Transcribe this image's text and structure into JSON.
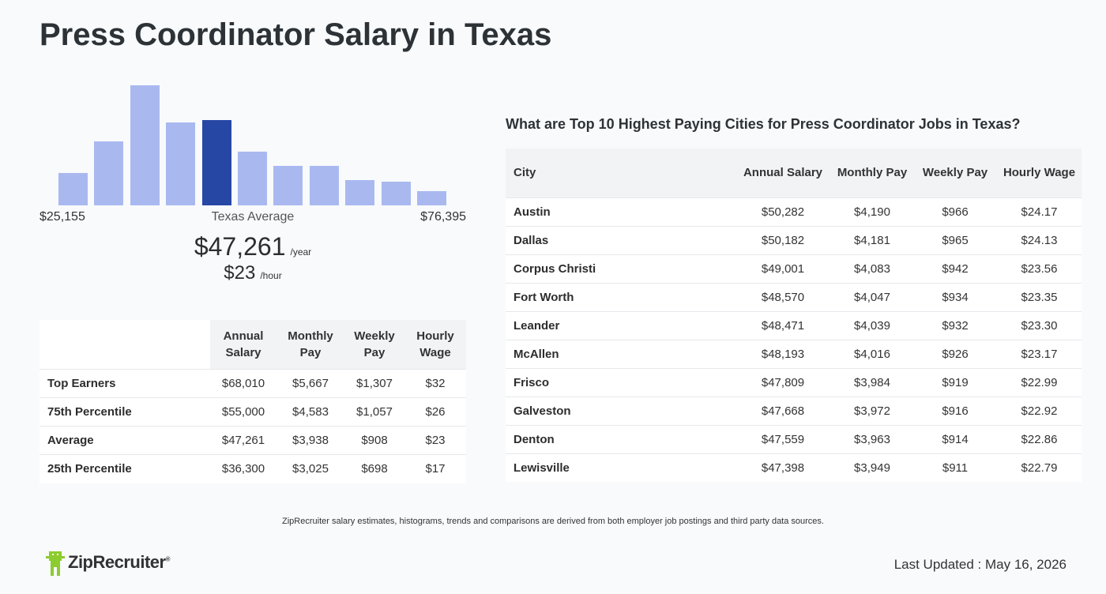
{
  "page": {
    "title": "Press Coordinator Salary in Texas"
  },
  "histogram": {
    "min_label": "$25,155",
    "center_label": "Texas Average",
    "max_label": "$76,395",
    "bar_levels": [
      0.27,
      0.53,
      1.0,
      0.69,
      0.71,
      0.45,
      0.33,
      0.33,
      0.21,
      0.2,
      0.12
    ],
    "highlight_index": 4,
    "colors": {
      "bar": "#a9b9f0",
      "highlight": "#2747a5"
    }
  },
  "average": {
    "yearly": "$47,261",
    "yearly_unit": "/year",
    "hourly": "$23",
    "hourly_unit": "/hour"
  },
  "percentile_table": {
    "headers": [
      "",
      "Annual Salary",
      "Monthly Pay",
      "Weekly Pay",
      "Hourly Wage"
    ],
    "rows": [
      [
        "Top Earners",
        "$68,010",
        "$5,667",
        "$1,307",
        "$32"
      ],
      [
        "75th Percentile",
        "$55,000",
        "$4,583",
        "$1,057",
        "$26"
      ],
      [
        "Average",
        "$47,261",
        "$3,938",
        "$908",
        "$23"
      ],
      [
        "25th Percentile",
        "$36,300",
        "$3,025",
        "$698",
        "$17"
      ]
    ]
  },
  "cities": {
    "title": "What are Top 10 Highest Paying Cities for Press Coordinator Jobs in Texas?",
    "headers": [
      "City",
      "Annual Salary",
      "Monthly Pay",
      "Weekly Pay",
      "Hourly Wage"
    ],
    "rows": [
      [
        "Austin",
        "$50,282",
        "$4,190",
        "$966",
        "$24.17"
      ],
      [
        "Dallas",
        "$50,182",
        "$4,181",
        "$965",
        "$24.13"
      ],
      [
        "Corpus Christi",
        "$49,001",
        "$4,083",
        "$942",
        "$23.56"
      ],
      [
        "Fort Worth",
        "$48,570",
        "$4,047",
        "$934",
        "$23.35"
      ],
      [
        "Leander",
        "$48,471",
        "$4,039",
        "$932",
        "$23.30"
      ],
      [
        "McAllen",
        "$48,193",
        "$4,016",
        "$926",
        "$23.17"
      ],
      [
        "Frisco",
        "$47,809",
        "$3,984",
        "$919",
        "$22.99"
      ],
      [
        "Galveston",
        "$47,668",
        "$3,972",
        "$916",
        "$22.92"
      ],
      [
        "Denton",
        "$47,559",
        "$3,963",
        "$914",
        "$22.86"
      ],
      [
        "Lewisville",
        "$47,398",
        "$3,949",
        "$911",
        "$22.79"
      ]
    ]
  },
  "footer": {
    "note": "ZipRecruiter salary estimates, histograms, trends and comparisons are derived from both employer job postings and third party data sources.",
    "logo_text": "ZipRecruiter",
    "logo_mark": "®",
    "last_updated": "Last Updated : May 16, 2026",
    "logo_color": "#8ccc2e"
  }
}
